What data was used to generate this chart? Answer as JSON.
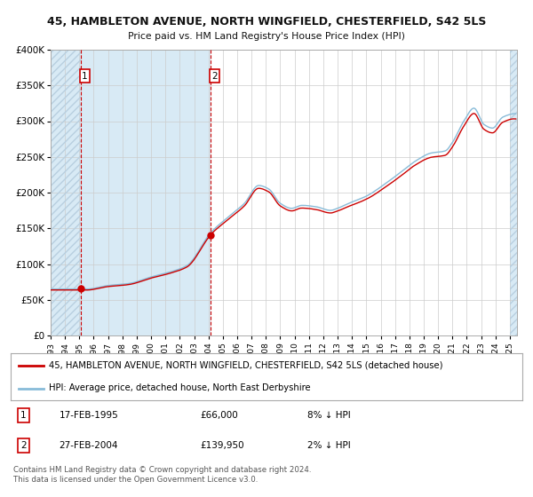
{
  "title1": "45, HAMBLETON AVENUE, NORTH WINGFIELD, CHESTERFIELD, S42 5LS",
  "title2": "Price paid vs. HM Land Registry's House Price Index (HPI)",
  "legend_red": "45, HAMBLETON AVENUE, NORTH WINGFIELD, CHESTERFIELD, S42 5LS (detached house)",
  "legend_blue": "HPI: Average price, detached house, North East Derbyshire",
  "transaction1_date": "17-FEB-1995",
  "transaction1_price": "£66,000",
  "transaction1_hpi": "8% ↓ HPI",
  "transaction2_date": "27-FEB-2004",
  "transaction2_price": "£139,950",
  "transaction2_hpi": "2% ↓ HPI",
  "transaction1_year": 1995.12,
  "transaction1_value": 66000,
  "transaction2_year": 2004.15,
  "transaction2_value": 139950,
  "copyright_text": "Contains HM Land Registry data © Crown copyright and database right 2024.\nThis data is licensed under the Open Government Licence v3.0.",
  "xmin": 1993.0,
  "xmax": 2025.5,
  "ymin": 0,
  "ymax": 400000,
  "yticks": [
    0,
    50000,
    100000,
    150000,
    200000,
    250000,
    300000,
    350000,
    400000
  ],
  "ytick_labels": [
    "£0",
    "£50K",
    "£100K",
    "£150K",
    "£200K",
    "£250K",
    "£300K",
    "£350K",
    "£400K"
  ],
  "bg_hatch_color": "#b8cfe0",
  "bg_blue_color": "#d8eaf5",
  "plot_bg": "#ffffff",
  "red_color": "#cc0000",
  "blue_color": "#88bbd8",
  "grid_color": "#cccccc",
  "vline_color": "#cc0000",
  "marker_color": "#cc0000",
  "hatch_end_x": 2025.0
}
